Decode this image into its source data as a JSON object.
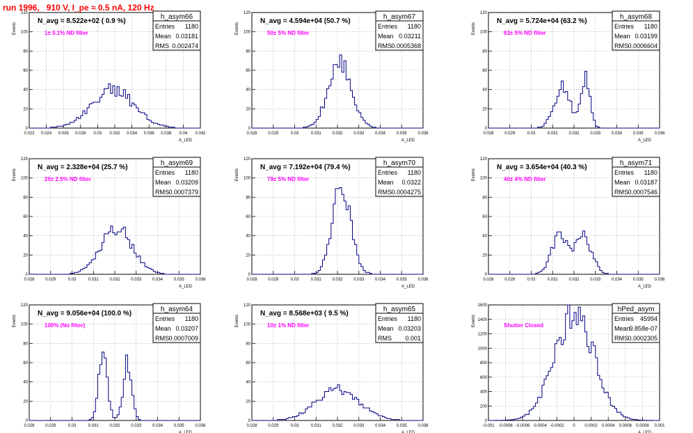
{
  "page": {
    "title": "run 1996,   910 V, I_pe ≈ 0.5 nA, 120 Hz"
  },
  "chart_data": [
    {
      "type": "bar",
      "name": "h_asym66",
      "navg": "N_avg = 8.522e+02 ( 0.9 %)",
      "filter": "1± 0.1% ND filter",
      "stats": [
        {
          "label": "Entries",
          "value": "1180"
        },
        {
          "label": "Mean",
          "value": "0.03181"
        },
        {
          "label": "RMS",
          "value": "0.002474"
        }
      ],
      "xlabel": "A_LED",
      "ylabel": "Events",
      "xlim": [
        0.022,
        0.042
      ],
      "ylim": [
        0,
        120
      ],
      "xticks": [
        "0.022",
        "0.024",
        "0.026",
        "0.028",
        "0.03",
        "0.032",
        "0.034",
        "0.036",
        "0.038",
        "0.04",
        "0.042"
      ],
      "yticks": [
        "0",
        "20",
        "40",
        "60",
        "80",
        "100",
        "120"
      ],
      "dist": [
        {
          "mu": 0.0318,
          "sigma": 0.00247,
          "peak": 40
        }
      ]
    },
    {
      "type": "bar",
      "name": "h_asym67",
      "navg": "N_avg = 4.594e+04 (50.7 %)",
      "filter": "50± 5% ND filter",
      "stats": [
        {
          "label": "Entries",
          "value": "1180"
        },
        {
          "label": "Mean",
          "value": "0.03211"
        },
        {
          "label": "RMS",
          "value": "0.0005368"
        }
      ],
      "xlabel": "A_LED",
      "ylabel": "Events",
      "xlim": [
        0.028,
        0.036
      ],
      "ylim": [
        0,
        120
      ],
      "xticks": [
        "0.028",
        "0.029",
        "0.03",
        "0.031",
        "0.032",
        "0.033",
        "0.034",
        "0.035",
        "0.036"
      ],
      "yticks": [
        "0",
        "20",
        "40",
        "60",
        "80",
        "100",
        "120"
      ],
      "dist": [
        {
          "mu": 0.03211,
          "sigma": 0.00054,
          "peak": 68
        }
      ]
    },
    {
      "type": "bar",
      "name": "h_asym68",
      "navg": "N_avg = 5.724e+04 (63.2 %)",
      "filter": "63± 5% ND filter",
      "stats": [
        {
          "label": "Entries",
          "value": "1180"
        },
        {
          "label": "Mean",
          "value": "0.03199"
        },
        {
          "label": "RMS",
          "value": "0.0006604"
        }
      ],
      "xlabel": "A_LED",
      "ylabel": "Events",
      "xlim": [
        0.028,
        0.036
      ],
      "ylim": [
        0,
        120
      ],
      "xticks": [
        "0.028",
        "0.029",
        "0.03",
        "0.031",
        "0.032",
        "0.033",
        "0.034",
        "0.035",
        "0.036"
      ],
      "yticks": [
        "0",
        "20",
        "40",
        "60",
        "80",
        "100",
        "120"
      ],
      "dist": [
        {
          "mu": 0.03145,
          "sigma": 0.00038,
          "peak": 42
        },
        {
          "mu": 0.03255,
          "sigma": 0.0002,
          "peak": 55
        }
      ]
    },
    {
      "type": "bar",
      "name": "h_asym69",
      "navg": "N_avg = 2.328e+04 (25.7 %)",
      "filter": "25± 2.5% ND filter",
      "stats": [
        {
          "label": "Entries",
          "value": "1180"
        },
        {
          "label": "Mean",
          "value": "0.03209"
        },
        {
          "label": "RMS",
          "value": "0.0007379"
        }
      ],
      "xlabel": "A_LED",
      "ylabel": "Events",
      "xlim": [
        0.028,
        0.036
      ],
      "ylim": [
        0,
        120
      ],
      "xticks": [
        "0.028",
        "0.029",
        "0.03",
        "0.031",
        "0.032",
        "0.033",
        "0.034",
        "0.035",
        "0.036"
      ],
      "yticks": [
        "0",
        "20",
        "40",
        "60",
        "80",
        "100",
        "120"
      ],
      "dist": [
        {
          "mu": 0.03209,
          "sigma": 0.00074,
          "peak": 48
        }
      ]
    },
    {
      "type": "bar",
      "name": "h_asym70",
      "navg": "N_avg = 7.192e+04 (79.4 %)",
      "filter": "79± 5% ND filter",
      "stats": [
        {
          "label": "Entries",
          "value": "1180"
        },
        {
          "label": "Mean",
          "value": "0.0322"
        },
        {
          "label": "RMS",
          "value": "0.0004275"
        }
      ],
      "xlabel": "A_LED",
      "ylabel": "Events",
      "xlim": [
        0.028,
        0.036
      ],
      "ylim": [
        0,
        120
      ],
      "xticks": [
        "0.028",
        "0.029",
        "0.03",
        "0.031",
        "0.032",
        "0.033",
        "0.034",
        "0.035",
        "0.036"
      ],
      "yticks": [
        "0",
        "20",
        "40",
        "60",
        "80",
        "100",
        "120"
      ],
      "dist": [
        {
          "mu": 0.0322,
          "sigma": 0.00043,
          "peak": 92
        }
      ]
    },
    {
      "type": "bar",
      "name": "h_asym71",
      "navg": "N_avg = 3.654e+04 (40.3 %)",
      "filter": "40± 4% ND filter",
      "stats": [
        {
          "label": "Entries",
          "value": "1180"
        },
        {
          "label": "Mean",
          "value": "0.03187"
        },
        {
          "label": "RMS",
          "value": "0.0007546"
        }
      ],
      "xlabel": "A_LED",
      "ylabel": "Events",
      "xlim": [
        0.028,
        0.036
      ],
      "ylim": [
        0,
        120
      ],
      "xticks": [
        "0.028",
        "0.029",
        "0.03",
        "0.031",
        "0.032",
        "0.033",
        "0.034",
        "0.035",
        "0.036"
      ],
      "yticks": [
        "0",
        "20",
        "40",
        "60",
        "80",
        "100",
        "120"
      ],
      "dist": [
        {
          "mu": 0.03135,
          "sigma": 0.0004,
          "peak": 40
        },
        {
          "mu": 0.03245,
          "sigma": 0.00038,
          "peak": 38
        }
      ]
    },
    {
      "type": "bar",
      "name": "h_asym64",
      "navg": "N_avg = 9.056e+04 (100.0 %)",
      "filter": "100% (No filter)",
      "stats": [
        {
          "label": "Entries",
          "value": "1180"
        },
        {
          "label": "Mean",
          "value": "0.03207"
        },
        {
          "label": "RMS",
          "value": "0.0007009"
        }
      ],
      "xlabel": "A_LED",
      "ylabel": "Events",
      "xlim": [
        0.028,
        0.036
      ],
      "ylim": [
        0,
        120
      ],
      "xticks": [
        "0.028",
        "0.029",
        "0.03",
        "0.031",
        "0.032",
        "0.033",
        "0.034",
        "0.035",
        "0.036"
      ],
      "yticks": [
        "0",
        "20",
        "40",
        "60",
        "80",
        "100",
        "120"
      ],
      "dist": [
        {
          "mu": 0.03145,
          "sigma": 0.0002,
          "peak": 68
        },
        {
          "mu": 0.0326,
          "sigma": 0.0002,
          "peak": 62
        }
      ]
    },
    {
      "type": "bar",
      "name": "h_asym65",
      "navg": "N_avg = 8.568e+03 ( 9.5 %)",
      "filter": "10± 1% ND filter",
      "stats": [
        {
          "label": "Entries",
          "value": "1180"
        },
        {
          "label": "Mean",
          "value": "0.03203"
        },
        {
          "label": "RMS",
          "value": "0.001"
        }
      ],
      "xlabel": "A_LED",
      "ylabel": "Events",
      "xlim": [
        0.028,
        0.036
      ],
      "ylim": [
        0,
        120
      ],
      "xticks": [
        "0.028",
        "0.029",
        "0.03",
        "0.031",
        "0.032",
        "0.033",
        "0.034",
        "0.035",
        "0.036"
      ],
      "yticks": [
        "0",
        "20",
        "40",
        "60",
        "80",
        "100",
        "120"
      ],
      "dist": [
        {
          "mu": 0.03203,
          "sigma": 0.001,
          "peak": 32
        }
      ]
    },
    {
      "type": "bar",
      "name": "hPed_asym",
      "navg": "",
      "filter": "Shutter Closed",
      "stats": [
        {
          "label": "Entries",
          "value": "45994"
        },
        {
          "label": "Mean",
          "value": "9.858e-07"
        },
        {
          "label": "RMS",
          "value": "0.0002305"
        }
      ],
      "xlabel": "A_LED",
      "ylabel": "Events",
      "xlim": [
        -0.001,
        0.001
      ],
      "ylim": [
        0,
        1600
      ],
      "xticks": [
        "-0.001",
        "-0.0008",
        "-0.0006",
        "-0.0004",
        "-0.0002",
        "0",
        "0.0002",
        "0.0004",
        "0.0006",
        "0.0008",
        "0.001"
      ],
      "yticks": [
        "0",
        "200",
        "400",
        "600",
        "800",
        "1000",
        "1200",
        "1400",
        "1600"
      ],
      "dist": [
        {
          "mu": 0.0,
          "sigma": 0.00023,
          "peak": 1500
        }
      ]
    }
  ]
}
